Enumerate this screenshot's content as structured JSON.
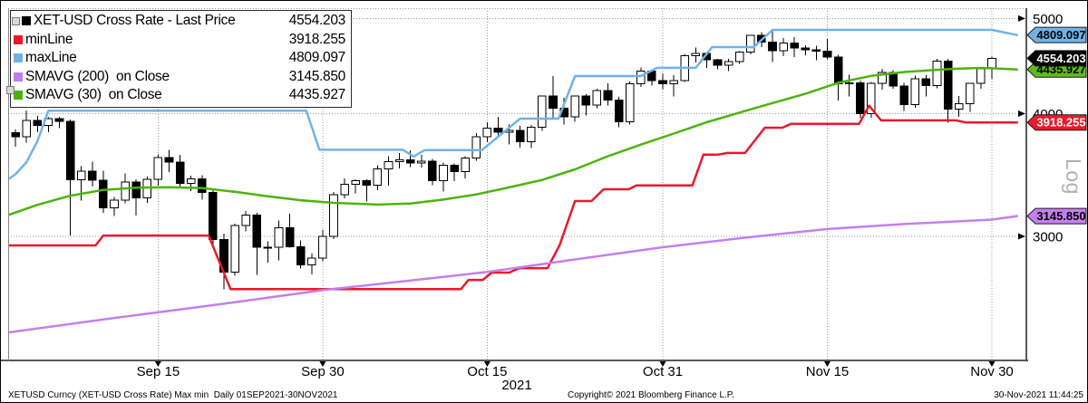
{
  "legend": {
    "rows": [
      {
        "label": "XET-USD Cross Rate - Last Price",
        "value": "4554.203",
        "color": "#000000"
      },
      {
        "label": "minLine",
        "value": "3918.255",
        "color": "#e8192d"
      },
      {
        "label": "maxLine",
        "value": "4809.097",
        "color": "#6fb3e8"
      },
      {
        "label": "SMAVG (200)  on Close",
        "value": "3145.850",
        "color": "#bf7bef"
      },
      {
        "label": "SMAVG (30)  on Close",
        "value": "4435.927",
        "color": "#4cb30e"
      }
    ]
  },
  "axis": {
    "log_label": "Log",
    "year_label": "2021"
  },
  "footer": {
    "left": "XETUSD Curncy (XET-USD Cross Rate) Max min  Daily 01SEP2021-30NOV2021",
    "center": "Copyright© 2021 Bloomberg Finance L.P.",
    "right": "30-Nov-2021 11:44:25"
  },
  "chart_data": {
    "type": "candlestick",
    "title": "XET-USD Cross Rate - Last Price",
    "last_price": 4554.203,
    "period": "Daily 01SEP2021-30NOV2021",
    "y_scale": "log",
    "y_ticks": [
      5000,
      4000,
      3000
    ],
    "ylim": [
      2240,
      5100
    ],
    "x_ticks": [
      {
        "d": 14,
        "label": "Sep 15"
      },
      {
        "d": 29,
        "label": "Sep 30"
      },
      {
        "d": 44,
        "label": "Oct 15"
      },
      {
        "d": 60,
        "label": "Oct 31"
      },
      {
        "d": 75,
        "label": "Nov 15"
      },
      {
        "d": 90,
        "label": "Nov 30"
      }
    ],
    "badges": [
      {
        "label": "4809.097",
        "value": 4809.097,
        "bg": "#6fb3e8",
        "fg": "#000000"
      },
      {
        "label": "4554.203",
        "value": 4554.203,
        "bg": "#000000",
        "fg": "#ffffff"
      },
      {
        "label": "4435.927",
        "value": 4435.927,
        "bg": "#61bb17",
        "fg": "#000000"
      },
      {
        "label": "3918.255",
        "value": 3918.255,
        "bg": "#ed1a2d",
        "fg": "#ffffff"
      },
      {
        "label": "3145.850",
        "value": 3145.85,
        "bg": "#c77ef0",
        "fg": "#000000"
      }
    ],
    "candles_format": "open,high,low,close per day from 01SEP2021 to 30NOV2021",
    "candles": [
      [
        3431,
        3837,
        3380,
        3825
      ],
      [
        3825,
        3852,
        3703,
        3787
      ],
      [
        3787,
        4028,
        3738,
        3936
      ],
      [
        3936,
        3977,
        3830,
        3889
      ],
      [
        3889,
        3967,
        3830,
        3952
      ],
      [
        3952,
        3970,
        3868,
        3928
      ],
      [
        3928,
        3943,
        3005,
        3425
      ],
      [
        3425,
        3535,
        3261,
        3496
      ],
      [
        3496,
        3575,
        3371,
        3423
      ],
      [
        3423,
        3499,
        3172,
        3209
      ],
      [
        3209,
        3290,
        3147,
        3267
      ],
      [
        3267,
        3476,
        3243,
        3408
      ],
      [
        3408,
        3428,
        3150,
        3284
      ],
      [
        3284,
        3453,
        3245,
        3431
      ],
      [
        3431,
        3635,
        3380,
        3609
      ],
      [
        3609,
        3675,
        3488,
        3570
      ],
      [
        3570,
        3630,
        3370,
        3396
      ],
      [
        3396,
        3460,
        3335,
        3434
      ],
      [
        3434,
        3461,
        3270,
        3326
      ],
      [
        3326,
        3343,
        2930,
        2977
      ],
      [
        2977,
        3020,
        2651,
        2760
      ],
      [
        2760,
        3089,
        2737,
        3076
      ],
      [
        3076,
        3184,
        3034,
        3155
      ],
      [
        3155,
        3170,
        2740,
        2926
      ],
      [
        2926,
        2966,
        2822,
        2925
      ],
      [
        2925,
        3115,
        2837,
        3062
      ],
      [
        3062,
        3162,
        2921,
        2928
      ],
      [
        2928,
        2972,
        2783,
        2806
      ],
      [
        2806,
        2886,
        2743,
        2852
      ],
      [
        2852,
        3046,
        2829,
        3001
      ],
      [
        3001,
        3330,
        2980,
        3307
      ],
      [
        3307,
        3435,
        3280,
        3390
      ],
      [
        3390,
        3428,
        3320,
        3418
      ],
      [
        3418,
        3430,
        3255,
        3381
      ],
      [
        3381,
        3544,
        3342,
        3515
      ],
      [
        3515,
        3620,
        3379,
        3576
      ],
      [
        3576,
        3647,
        3518,
        3588
      ],
      [
        3588,
        3670,
        3530,
        3562
      ],
      [
        3562,
        3630,
        3525,
        3577
      ],
      [
        3577,
        3598,
        3382,
        3418
      ],
      [
        3418,
        3566,
        3334,
        3544
      ],
      [
        3544,
        3560,
        3413,
        3492
      ],
      [
        3492,
        3620,
        3436,
        3605
      ],
      [
        3605,
        3822,
        3582,
        3791
      ],
      [
        3791,
        3918,
        3741,
        3868
      ],
      [
        3868,
        3970,
        3795,
        3829
      ],
      [
        3829,
        3900,
        3720,
        3846
      ],
      [
        3846,
        3887,
        3693,
        3747
      ],
      [
        3747,
        3894,
        3688,
        3874
      ],
      [
        3874,
        4171,
        3842,
        4167
      ],
      [
        4167,
        4366,
        3962,
        4052
      ],
      [
        4052,
        4150,
        3900,
        3971
      ],
      [
        3971,
        4174,
        3924,
        4168
      ],
      [
        4168,
        4186,
        3984,
        4082
      ],
      [
        4082,
        4239,
        4053,
        4222
      ],
      [
        4222,
        4293,
        4076,
        4131
      ],
      [
        4131,
        4162,
        3875,
        3922
      ],
      [
        3922,
        4313,
        3900,
        4288
      ],
      [
        4288,
        4459,
        4258,
        4418
      ],
      [
        4418,
        4437,
        4273,
        4324
      ],
      [
        4324,
        4393,
        4235,
        4290
      ],
      [
        4290,
        4376,
        4163,
        4323
      ],
      [
        4323,
        4599,
        4308,
        4583
      ],
      [
        4583,
        4670,
        4508,
        4604
      ],
      [
        4604,
        4621,
        4451,
        4537
      ],
      [
        4537,
        4549,
        4438,
        4481
      ],
      [
        4481,
        4550,
        4421,
        4521
      ],
      [
        4521,
        4632,
        4494,
        4620
      ],
      [
        4620,
        4810,
        4594,
        4808
      ],
      [
        4808,
        4842,
        4673,
        4731
      ],
      [
        4731,
        4867,
        4516,
        4637
      ],
      [
        4637,
        4774,
        4578,
        4721
      ],
      [
        4721,
        4786,
        4567,
        4666
      ],
      [
        4666,
        4694,
        4584,
        4645
      ],
      [
        4645,
        4691,
        4531,
        4630
      ],
      [
        4630,
        4765,
        4543,
        4567
      ],
      [
        4567,
        4590,
        4126,
        4289
      ],
      [
        4289,
        4384,
        4165,
        4299
      ],
      [
        4299,
        4320,
        3959,
        3998
      ],
      [
        3998,
        4307,
        3961,
        4296
      ],
      [
        4296,
        4444,
        4232,
        4406
      ],
      [
        4406,
        4429,
        4238,
        4268
      ],
      [
        4268,
        4300,
        4025,
        4087
      ],
      [
        4087,
        4374,
        4057,
        4342
      ],
      [
        4342,
        4379,
        4165,
        4271
      ],
      [
        4271,
        4546,
        4244,
        4522
      ],
      [
        4522,
        4550,
        3917,
        4043
      ],
      [
        4043,
        4169,
        3969,
        4092
      ],
      [
        4092,
        4299,
        4016,
        4294
      ],
      [
        4294,
        4458,
        4242,
        4445
      ],
      [
        4445,
        4572,
        4340,
        4554.203
      ]
    ],
    "series": [
      {
        "name": "maxLine",
        "color": "#6fb3e8",
        "width": 2.5,
        "points": [
          [
            0,
            3410
          ],
          [
            1,
            3470
          ],
          [
            2,
            3570
          ],
          [
            3,
            3750
          ],
          [
            4,
            4028
          ],
          [
            27.5,
            4028
          ],
          [
            28.7,
            3675
          ],
          [
            36.3,
            3675
          ],
          [
            37.3,
            3618
          ],
          [
            38.3,
            3672
          ],
          [
            43.5,
            3672
          ],
          [
            45,
            3790
          ],
          [
            47,
            3953
          ],
          [
            50.5,
            3953
          ],
          [
            52,
            4368
          ],
          [
            58,
            4368
          ],
          [
            59.5,
            4453
          ],
          [
            63,
            4453
          ],
          [
            64.5,
            4675
          ],
          [
            68.3,
            4675
          ],
          [
            70,
            4867
          ],
          [
            90,
            4867
          ],
          [
            92.3,
            4809
          ]
        ]
      },
      {
        "name": "minLine",
        "color": "#e8192d",
        "width": 2.5,
        "points": [
          [
            0,
            2937
          ],
          [
            8.3,
            2937
          ],
          [
            9,
            3006
          ],
          [
            18.6,
            3006
          ],
          [
            20.6,
            2651
          ],
          [
            41.6,
            2651
          ],
          [
            42.3,
            2709
          ],
          [
            43.6,
            2709
          ],
          [
            44.4,
            2756
          ],
          [
            46,
            2756
          ],
          [
            46.9,
            2785
          ],
          [
            49.5,
            2785
          ],
          [
            50.6,
            2940
          ],
          [
            52,
            3259
          ],
          [
            53.5,
            3259
          ],
          [
            54.6,
            3350
          ],
          [
            56.9,
            3350
          ],
          [
            57.6,
            3381
          ],
          [
            62.7,
            3381
          ],
          [
            63.7,
            3633
          ],
          [
            65,
            3633
          ],
          [
            65.9,
            3648
          ],
          [
            67.5,
            3648
          ],
          [
            69.3,
            3870
          ],
          [
            70.9,
            3870
          ],
          [
            71.7,
            3906
          ],
          [
            77.9,
            3906
          ],
          [
            78.8,
            4075
          ],
          [
            79.9,
            3937
          ],
          [
            86.7,
            3937
          ],
          [
            87.6,
            3918
          ],
          [
            92.3,
            3918
          ]
        ]
      },
      {
        "name": "SMAVG (200) on Close",
        "color": "#c47ef0",
        "width": 2.5,
        "points": [
          [
            0,
            2392
          ],
          [
            10,
            2478
          ],
          [
            20,
            2562
          ],
          [
            29,
            2645
          ],
          [
            37,
            2705
          ],
          [
            44,
            2760
          ],
          [
            52,
            2842
          ],
          [
            60,
            2925
          ],
          [
            68,
            2995
          ],
          [
            75,
            3052
          ],
          [
            82,
            3088
          ],
          [
            90,
            3120
          ],
          [
            92.3,
            3146
          ]
        ]
      },
      {
        "name": "SMAVG (30) on Close",
        "color": "#4cb30e",
        "width": 2.5,
        "points": [
          [
            0,
            3144
          ],
          [
            3,
            3230
          ],
          [
            6,
            3300
          ],
          [
            9,
            3345
          ],
          [
            12,
            3362
          ],
          [
            15,
            3366
          ],
          [
            18,
            3360
          ],
          [
            21,
            3330
          ],
          [
            24,
            3295
          ],
          [
            27,
            3265
          ],
          [
            30,
            3245
          ],
          [
            34,
            3232
          ],
          [
            37,
            3240
          ],
          [
            40,
            3270
          ],
          [
            43,
            3310
          ],
          [
            46,
            3365
          ],
          [
            49,
            3424
          ],
          [
            52,
            3510
          ],
          [
            55,
            3620
          ],
          [
            58,
            3720
          ],
          [
            61,
            3817
          ],
          [
            64,
            3920
          ],
          [
            67,
            4010
          ],
          [
            70,
            4100
          ],
          [
            73,
            4190
          ],
          [
            76,
            4300
          ],
          [
            79,
            4370
          ],
          [
            82,
            4410
          ],
          [
            85,
            4432
          ],
          [
            87,
            4446
          ],
          [
            89,
            4452
          ],
          [
            90,
            4448
          ],
          [
            92.3,
            4436
          ]
        ]
      }
    ]
  }
}
